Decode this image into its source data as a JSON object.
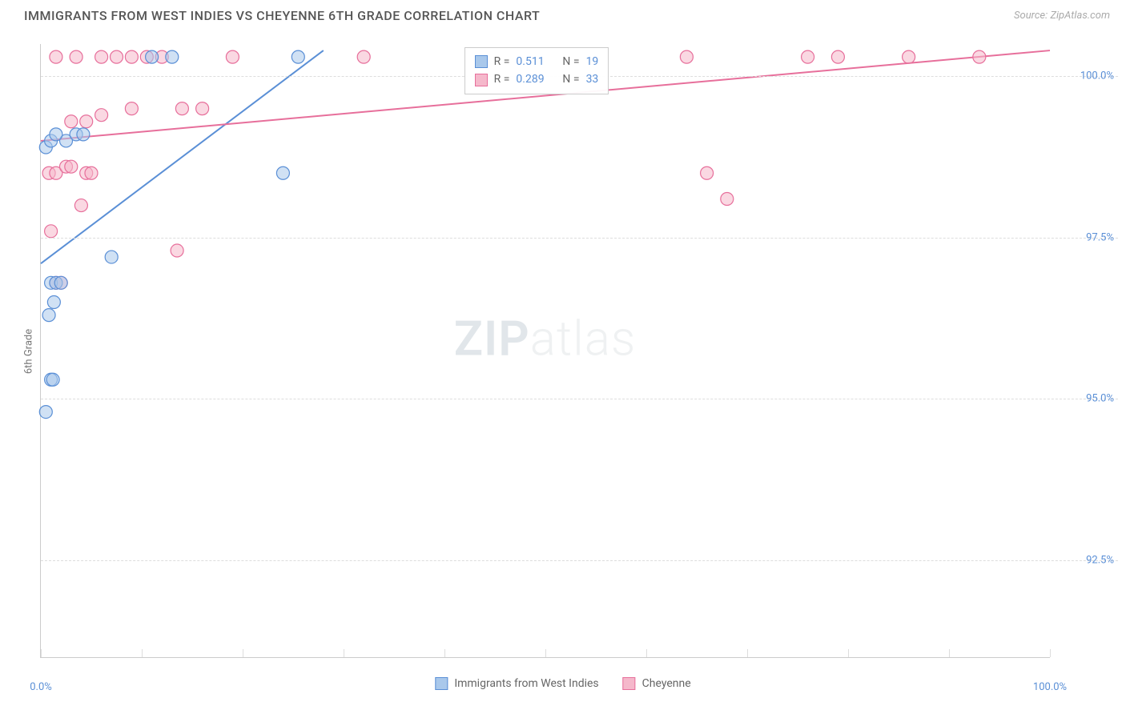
{
  "header": {
    "title": "IMMIGRANTS FROM WEST INDIES VS CHEYENNE 6TH GRADE CORRELATION CHART",
    "source_prefix": "Source: ",
    "source": "ZipAtlas.com"
  },
  "chart": {
    "type": "scatter",
    "y_axis_label": "6th Grade",
    "xlim": [
      0,
      100
    ],
    "ylim": [
      91.0,
      100.5
    ],
    "x_ticks": [
      0,
      10,
      20,
      30,
      40,
      50,
      60,
      70,
      80,
      90,
      100
    ],
    "x_tick_labels": {
      "0": "0.0%",
      "100": "100.0%"
    },
    "y_ticks": [
      92.5,
      95.0,
      97.5,
      100.0
    ],
    "y_tick_labels": [
      "92.5%",
      "95.0%",
      "97.5%",
      "100.0%"
    ],
    "background_color": "#ffffff",
    "grid_color": "#dddddd",
    "marker_radius": 8,
    "marker_stroke_width": 1.2,
    "trend_line_width": 2,
    "series": [
      {
        "name": "Immigrants from West Indies",
        "color_fill": "#a9c8eb",
        "color_stroke": "#5a8fd6",
        "r": "0.511",
        "n": "19",
        "trend": {
          "x1": 0,
          "y1": 97.1,
          "x2": 28,
          "y2": 100.4
        },
        "points": [
          [
            0.5,
            94.8
          ],
          [
            1.0,
            95.3
          ],
          [
            1.2,
            95.3
          ],
          [
            0.8,
            96.3
          ],
          [
            1.3,
            96.5
          ],
          [
            1.0,
            96.8
          ],
          [
            1.5,
            96.8
          ],
          [
            2.0,
            96.8
          ],
          [
            2.5,
            99.0
          ],
          [
            7.0,
            97.2
          ],
          [
            0.5,
            98.9
          ],
          [
            1.0,
            99.0
          ],
          [
            1.5,
            99.1
          ],
          [
            3.5,
            99.1
          ],
          [
            4.2,
            99.1
          ],
          [
            24.0,
            98.5
          ],
          [
            11.0,
            100.3
          ],
          [
            13.0,
            100.3
          ],
          [
            25.5,
            100.3
          ]
        ]
      },
      {
        "name": "Cheyenne",
        "color_fill": "#f5b8cb",
        "color_stroke": "#e76f9b",
        "r": "0.289",
        "n": "33",
        "trend": {
          "x1": 0,
          "y1": 99.0,
          "x2": 100,
          "y2": 100.4
        },
        "points": [
          [
            1.0,
            97.6
          ],
          [
            1.5,
            96.8
          ],
          [
            2.0,
            96.8
          ],
          [
            0.8,
            98.5
          ],
          [
            1.5,
            98.5
          ],
          [
            2.5,
            98.6
          ],
          [
            3.0,
            98.6
          ],
          [
            4.5,
            98.5
          ],
          [
            5.0,
            98.5
          ],
          [
            4.0,
            98.0
          ],
          [
            13.5,
            97.3
          ],
          [
            9.0,
            99.5
          ],
          [
            14.0,
            99.5
          ],
          [
            3.0,
            99.3
          ],
          [
            4.5,
            99.3
          ],
          [
            6.0,
            99.4
          ],
          [
            6.0,
            100.3
          ],
          [
            7.5,
            100.3
          ],
          [
            9.0,
            100.3
          ],
          [
            10.5,
            100.3
          ],
          [
            12.0,
            100.3
          ],
          [
            19.0,
            100.3
          ],
          [
            32.0,
            100.3
          ],
          [
            64.0,
            100.3
          ],
          [
            76.0,
            100.3
          ],
          [
            79.0,
            100.3
          ],
          [
            86.0,
            100.3
          ],
          [
            93.0,
            100.3
          ],
          [
            66.0,
            98.5
          ],
          [
            68.0,
            98.1
          ],
          [
            1.5,
            100.3
          ],
          [
            3.5,
            100.3
          ],
          [
            16.0,
            99.5
          ]
        ]
      }
    ],
    "stats_box": {
      "r_label": "R  =",
      "n_label": "N  ="
    },
    "watermark": {
      "zip": "ZIP",
      "atlas": "atlas"
    }
  },
  "bottom_legend": {
    "series1": "Immigrants from West Indies",
    "series2": "Cheyenne"
  }
}
